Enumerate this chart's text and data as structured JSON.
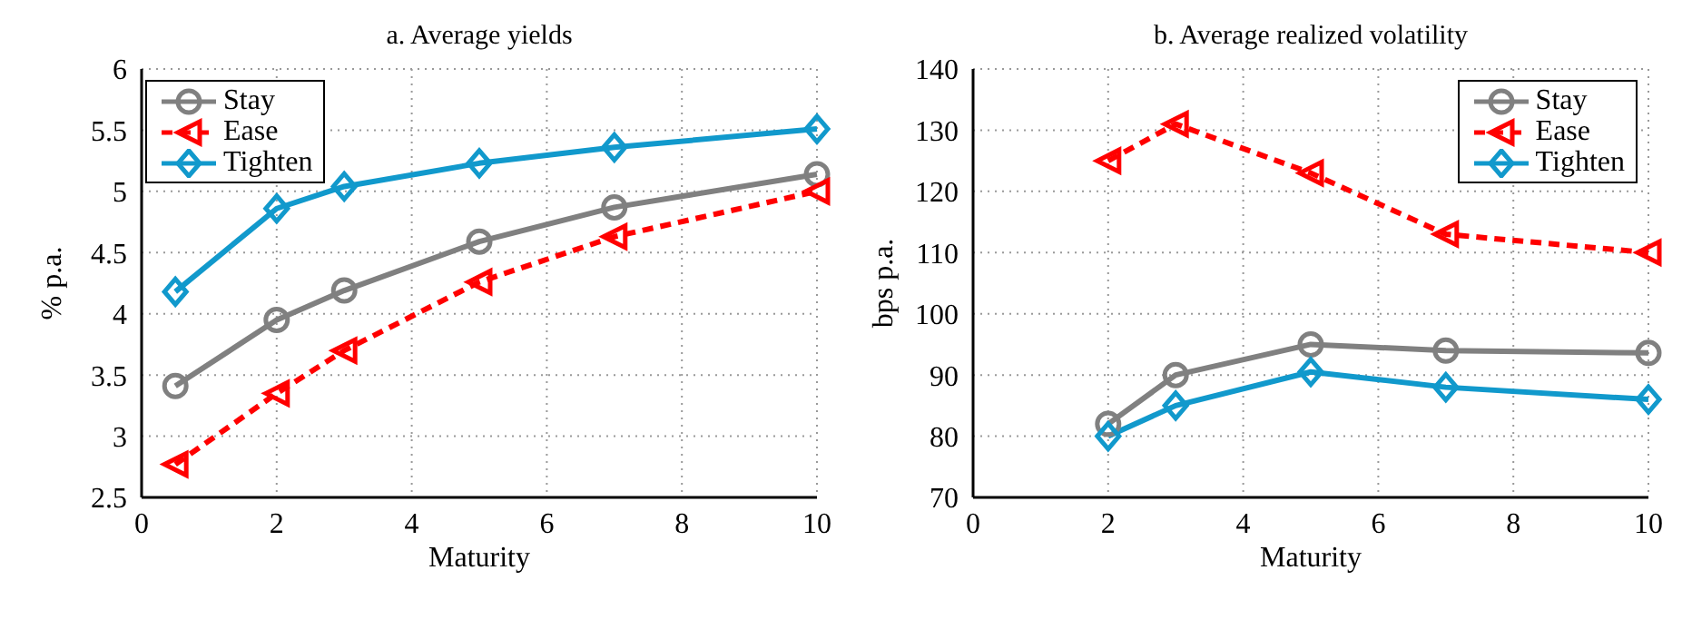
{
  "chart_data": [
    {
      "type": "line",
      "title": "a. Average yields",
      "xlabel": "Maturity",
      "ylabel": "% p.a.",
      "x": [
        0.5,
        2,
        3,
        5,
        7,
        10
      ],
      "xlim": [
        0,
        10
      ],
      "xticks": [
        0,
        2,
        4,
        6,
        8,
        10
      ],
      "ylim": [
        2.5,
        6
      ],
      "yticks": [
        2.5,
        3,
        3.5,
        4,
        4.5,
        5,
        5.5,
        6
      ],
      "grid": true,
      "legend": "top left",
      "series": [
        {
          "name": "Stay",
          "color": "#808080",
          "marker": "circle",
          "line_style": "solid",
          "values": [
            3.41,
            3.95,
            4.19,
            4.59,
            4.87,
            5.14
          ]
        },
        {
          "name": "Ease",
          "color": "#ff0000",
          "marker": "triangle",
          "line_style": "dashed",
          "values": [
            2.77,
            3.35,
            3.7,
            4.26,
            4.63,
            5.0
          ]
        },
        {
          "name": "Tighten",
          "color": "#1199cc",
          "marker": "diamond",
          "line_style": "solid",
          "values": [
            4.18,
            4.86,
            5.04,
            5.23,
            5.36,
            5.51
          ]
        }
      ]
    },
    {
      "type": "line",
      "title": "b. Average realized volatility",
      "xlabel": "Maturity",
      "ylabel": "bps p.a.",
      "x": [
        2,
        3,
        5,
        7,
        10
      ],
      "xlim": [
        0,
        10
      ],
      "xticks": [
        0,
        2,
        4,
        6,
        8,
        10
      ],
      "ylim": [
        70,
        140
      ],
      "yticks": [
        70,
        80,
        90,
        100,
        110,
        120,
        130,
        140
      ],
      "grid": true,
      "legend": "top right",
      "series": [
        {
          "name": "Stay",
          "color": "#808080",
          "marker": "circle",
          "line_style": "solid",
          "values": [
            82,
            90,
            95,
            94,
            93.6
          ]
        },
        {
          "name": "Ease",
          "color": "#ff0000",
          "marker": "triangle",
          "line_style": "dashed",
          "values": [
            125,
            131,
            123,
            113,
            110
          ]
        },
        {
          "name": "Tighten",
          "color": "#1199cc",
          "marker": "diamond",
          "line_style": "solid",
          "values": [
            80,
            85,
            90.5,
            88,
            86
          ]
        }
      ]
    }
  ]
}
